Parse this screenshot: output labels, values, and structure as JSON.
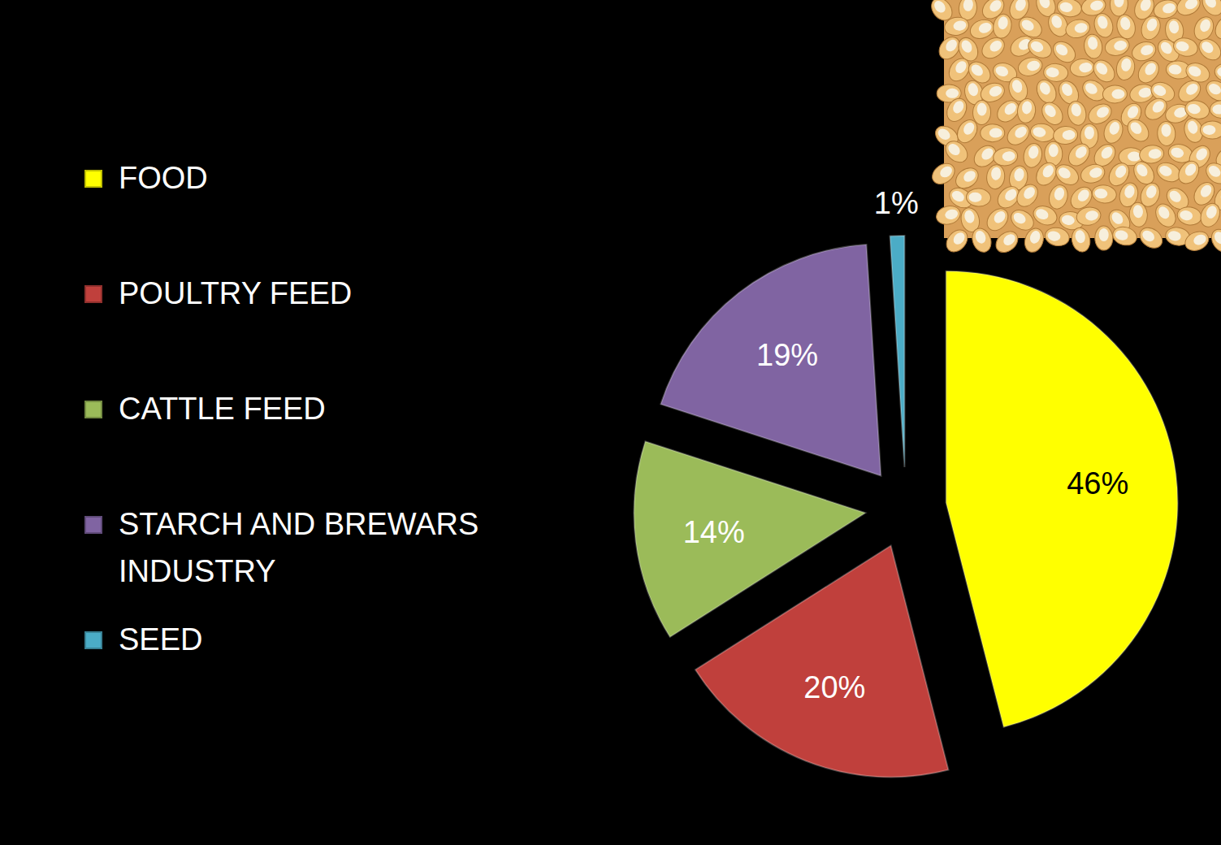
{
  "chart_data": {
    "type": "pie",
    "categories": [
      "FOOD",
      "POULTRY FEED",
      "CATTLE FEED",
      "STARCH AND BREWARS INDUSTRY",
      "SEED"
    ],
    "values": [
      46,
      20,
      14,
      19,
      1
    ],
    "value_labels": [
      "46%",
      "20%",
      "14%",
      "19%",
      "1%"
    ],
    "colors": [
      "#ffff00",
      "#c0403c",
      "#9bbb59",
      "#8064a2",
      "#4bacc6"
    ],
    "data_labels": true,
    "legend": "left"
  }
}
